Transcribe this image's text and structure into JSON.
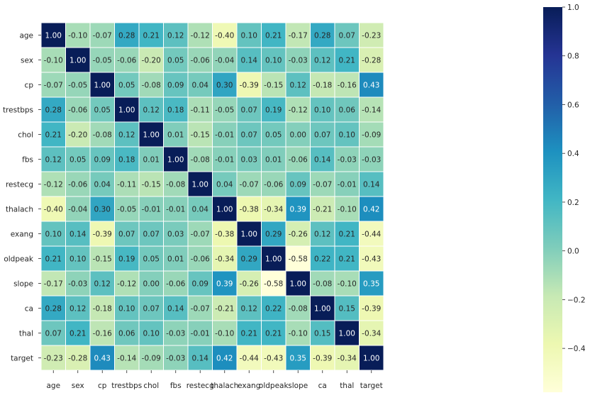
{
  "chart_data": {
    "type": "heatmap",
    "title": "",
    "xlabel": "",
    "ylabel": "",
    "labels": [
      "age",
      "sex",
      "cp",
      "trestbps",
      "chol",
      "fbs",
      "restecg",
      "thalach",
      "exang",
      "oldpeak",
      "slope",
      "ca",
      "thal",
      "target"
    ],
    "matrix": [
      [
        1.0,
        -0.1,
        -0.07,
        0.28,
        0.21,
        0.12,
        -0.12,
        -0.4,
        0.1,
        0.21,
        -0.17,
        0.28,
        0.07,
        -0.23
      ],
      [
        -0.1,
        1.0,
        -0.05,
        -0.06,
        -0.2,
        0.05,
        -0.06,
        -0.04,
        0.14,
        0.1,
        -0.03,
        0.12,
        0.21,
        -0.28
      ],
      [
        -0.07,
        -0.05,
        1.0,
        0.05,
        -0.08,
        0.09,
        0.04,
        0.3,
        -0.39,
        -0.15,
        0.12,
        -0.18,
        -0.16,
        0.43
      ],
      [
        0.28,
        -0.06,
        0.05,
        1.0,
        0.12,
        0.18,
        -0.11,
        -0.05,
        0.07,
        0.19,
        -0.12,
        0.1,
        0.06,
        -0.14
      ],
      [
        0.21,
        -0.2,
        -0.08,
        0.12,
        1.0,
        0.01,
        -0.15,
        -0.01,
        0.07,
        0.05,
        -0.0,
        0.07,
        0.1,
        -0.09
      ],
      [
        0.12,
        0.05,
        0.09,
        0.18,
        0.01,
        1.0,
        -0.08,
        -0.01,
        0.03,
        0.01,
        -0.06,
        0.14,
        -0.03,
        -0.03
      ],
      [
        -0.12,
        -0.06,
        0.04,
        -0.11,
        -0.15,
        -0.08,
        1.0,
        0.04,
        -0.07,
        -0.06,
        0.09,
        -0.07,
        -0.01,
        0.14
      ],
      [
        -0.4,
        -0.04,
        0.3,
        -0.05,
        -0.01,
        -0.01,
        0.04,
        1.0,
        -0.38,
        -0.34,
        0.39,
        -0.21,
        -0.1,
        0.42
      ],
      [
        0.1,
        0.14,
        -0.39,
        0.07,
        0.07,
        0.03,
        -0.07,
        -0.38,
        1.0,
        0.29,
        -0.26,
        0.12,
        0.21,
        -0.44
      ],
      [
        0.21,
        0.1,
        -0.15,
        0.19,
        0.05,
        0.01,
        -0.06,
        -0.34,
        0.29,
        1.0,
        -0.58,
        0.22,
        0.21,
        -0.43
      ],
      [
        -0.17,
        -0.03,
        0.12,
        -0.12,
        -0.0,
        -0.06,
        0.09,
        0.39,
        -0.26,
        -0.58,
        1.0,
        -0.08,
        -0.1,
        0.35
      ],
      [
        0.28,
        0.12,
        -0.18,
        0.1,
        0.07,
        0.14,
        -0.07,
        -0.21,
        0.12,
        0.22,
        -0.08,
        1.0,
        0.15,
        -0.39
      ],
      [
        0.07,
        0.21,
        -0.16,
        0.06,
        0.1,
        -0.03,
        -0.01,
        -0.1,
        0.21,
        0.21,
        -0.1,
        0.15,
        1.0,
        -0.34
      ],
      [
        -0.23,
        -0.28,
        0.43,
        -0.14,
        -0.09,
        -0.03,
        0.14,
        0.42,
        -0.44,
        -0.43,
        0.35,
        -0.39,
        -0.34,
        1.0
      ]
    ],
    "colorscale": "YlGnBu",
    "vmin": -0.58,
    "vmax": 1.0,
    "colorbar_ticks": [
      "1.0",
      "0.8",
      "0.6",
      "0.4",
      "0.2",
      "0.0",
      "−0.2",
      "−0.4"
    ],
    "colorbar_tick_values": [
      1.0,
      0.8,
      0.6,
      0.4,
      0.2,
      0.0,
      -0.2,
      -0.4
    ],
    "annotation_format": "2 decimals",
    "grid": true,
    "legend": "colorbar-right"
  }
}
